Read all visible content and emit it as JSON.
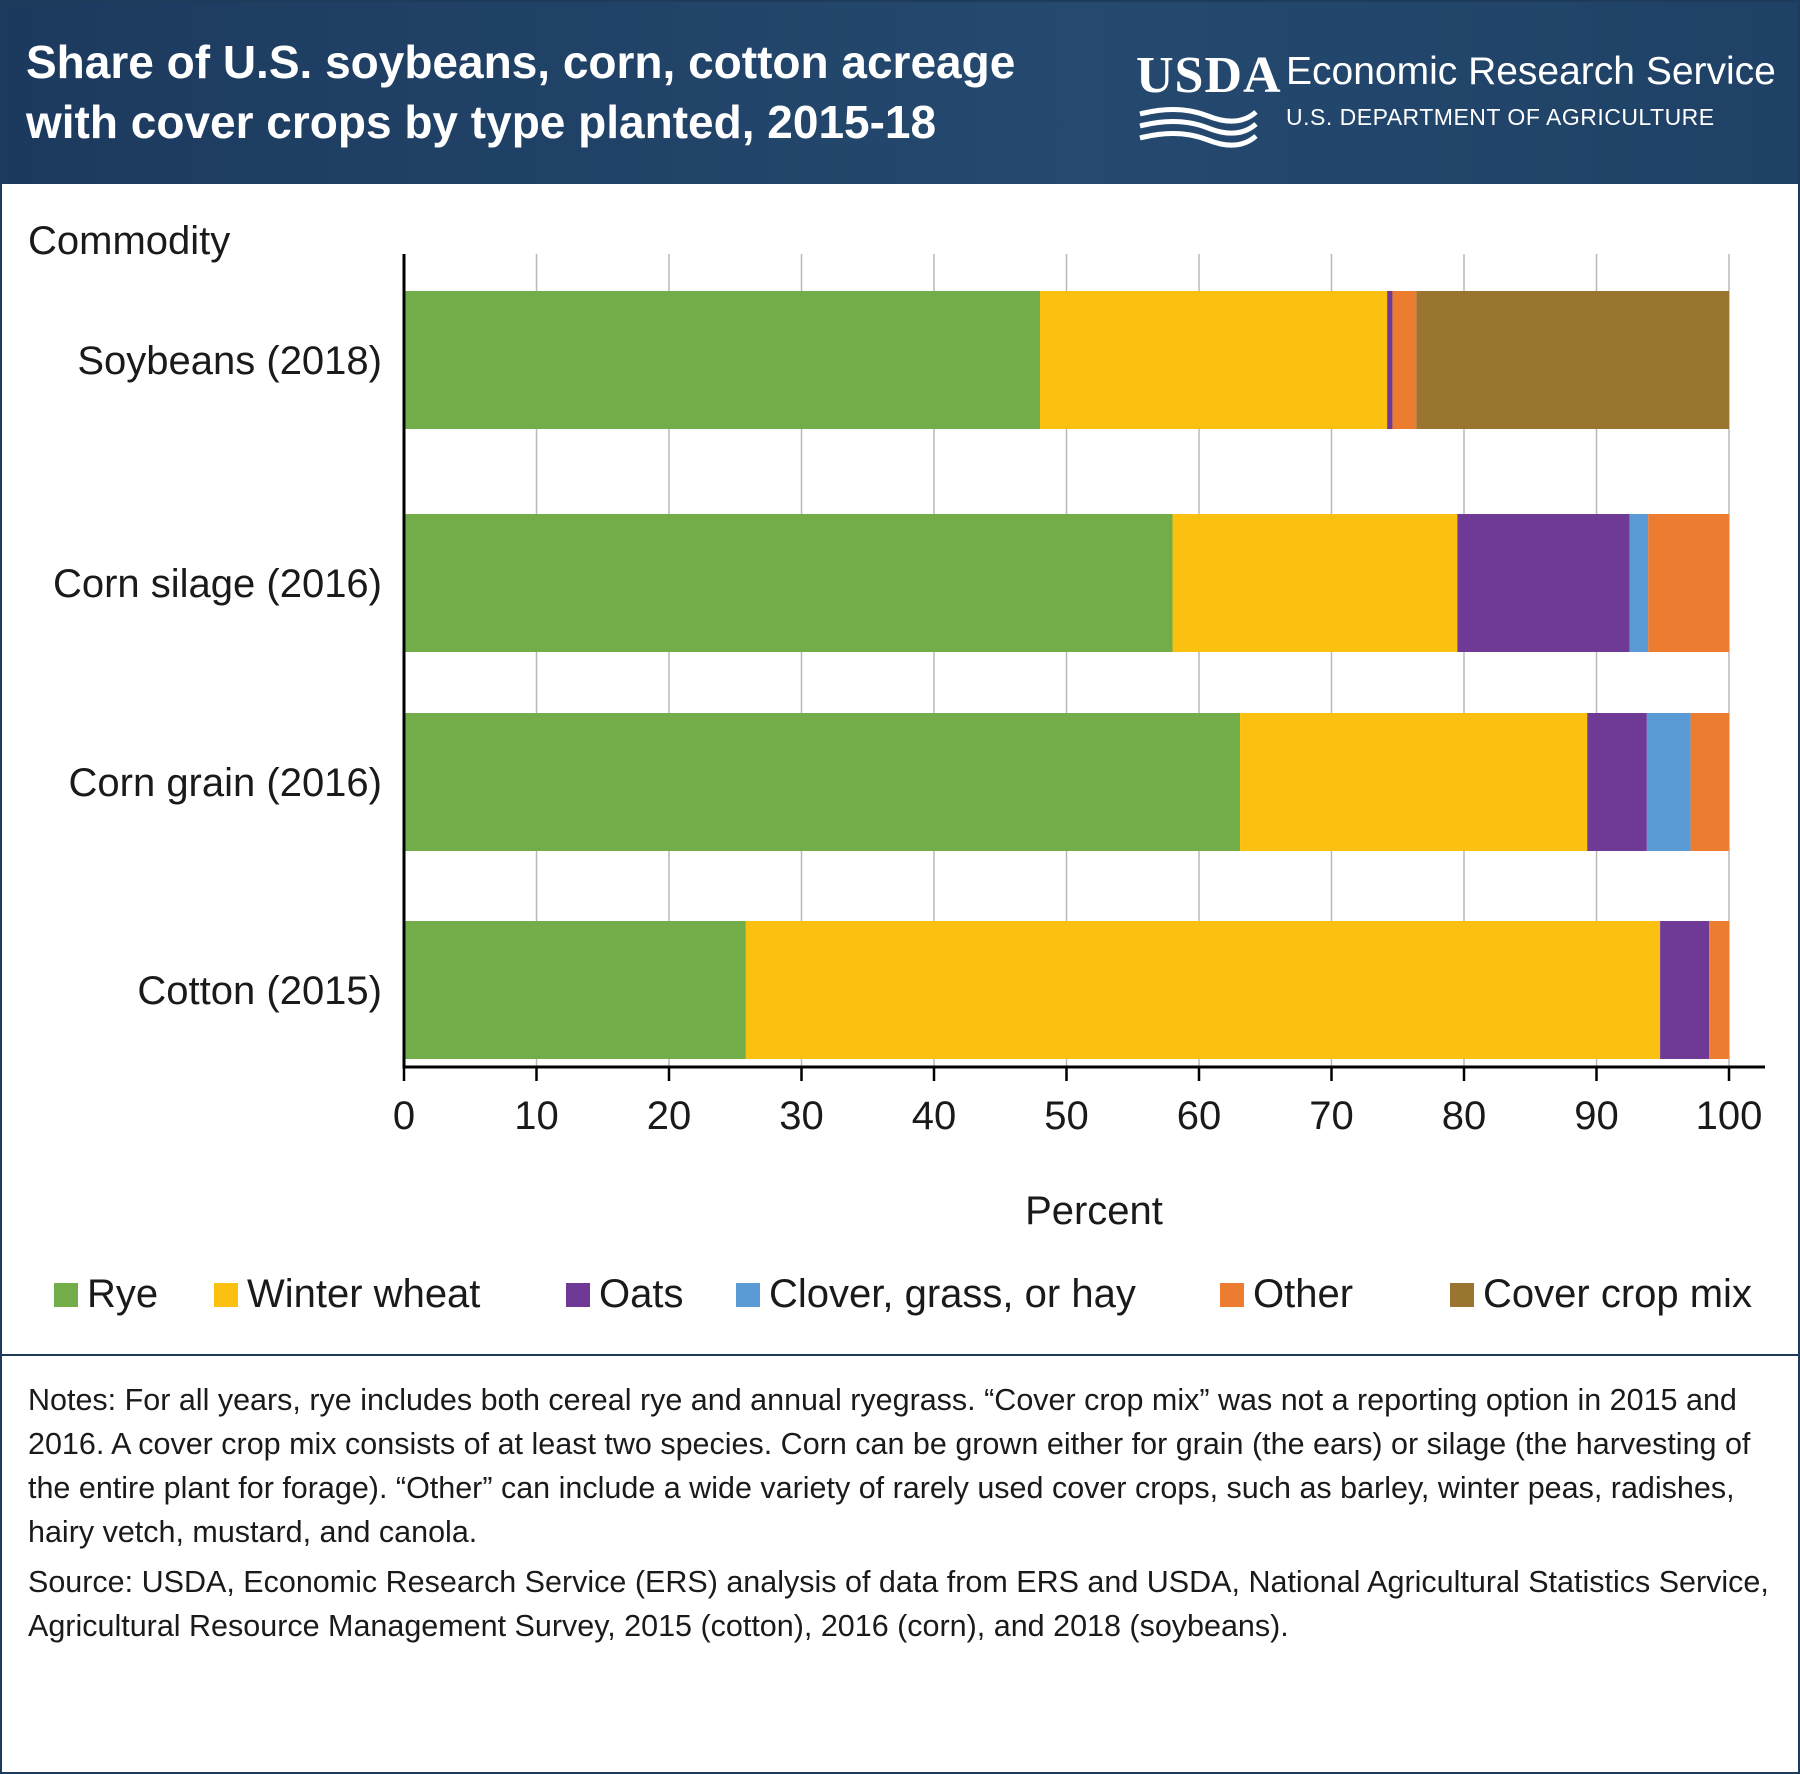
{
  "header": {
    "title": "Share of U.S. soybeans, corn, cotton acreage with cover crops by type planted, 2015-18",
    "logo_text": "USDA",
    "agency_name": "Economic Research Service",
    "department": "U.S. DEPARTMENT OF AGRICULTURE",
    "background_color": "#1f4166"
  },
  "chart_data": {
    "type": "bar",
    "orientation": "horizontal",
    "stacked": true,
    "title": "Share of U.S. soybeans, corn, cotton acreage with cover crops by type planted, 2015-18",
    "ylabel": "Commodity",
    "xlabel": "Percent",
    "xlim": [
      0,
      100
    ],
    "xticks": [
      0,
      10,
      20,
      30,
      40,
      50,
      60,
      70,
      80,
      90,
      100
    ],
    "grid": true,
    "legend_position": "bottom",
    "categories": [
      "Soybeans (2018)",
      "Corn silage (2016)",
      "Corn grain (2016)",
      "Cotton (2015)"
    ],
    "series": [
      {
        "name": "Rye",
        "color": "#72ad4a",
        "values": [
          48.0,
          58.0,
          63.1,
          25.8
        ]
      },
      {
        "name": "Winter wheat",
        "color": "#fcc010",
        "values": [
          26.2,
          21.5,
          26.2,
          69.0
        ]
      },
      {
        "name": "Oats",
        "color": "#6f3a96",
        "values": [
          0.4,
          13.0,
          4.5,
          3.7
        ]
      },
      {
        "name": "Clover, grass, or hay",
        "color": "#5b9bd5",
        "values": [
          0.0,
          1.4,
          3.3,
          0.0
        ]
      },
      {
        "name": "Other",
        "color": "#ec7c30",
        "values": [
          1.8,
          6.1,
          2.9,
          1.5
        ]
      },
      {
        "name": "Cover crop mix",
        "color": "#9a752f",
        "values": [
          23.6,
          0.0,
          0.0,
          0.0
        ]
      }
    ]
  },
  "footer": {
    "notes": "Notes: For all years, rye includes both cereal rye and annual ryegrass. “Cover crop mix” was not a reporting option in 2015 and 2016. A cover crop mix consists of at least two species. Corn can be grown either for grain (the ears) or silage (the harvesting of the entire plant for forage). “Other” can include a wide variety of rarely used cover crops, such as barley, winter peas, radishes, hairy vetch, mustard, and canola.",
    "source": "Source: USDA, Economic Research Service (ERS) analysis of data from ERS and USDA, National Agricultural Statistics Service, Agricultural Resource Management Survey, 2015 (cotton), 2016 (corn), and 2018 (soybeans)."
  }
}
